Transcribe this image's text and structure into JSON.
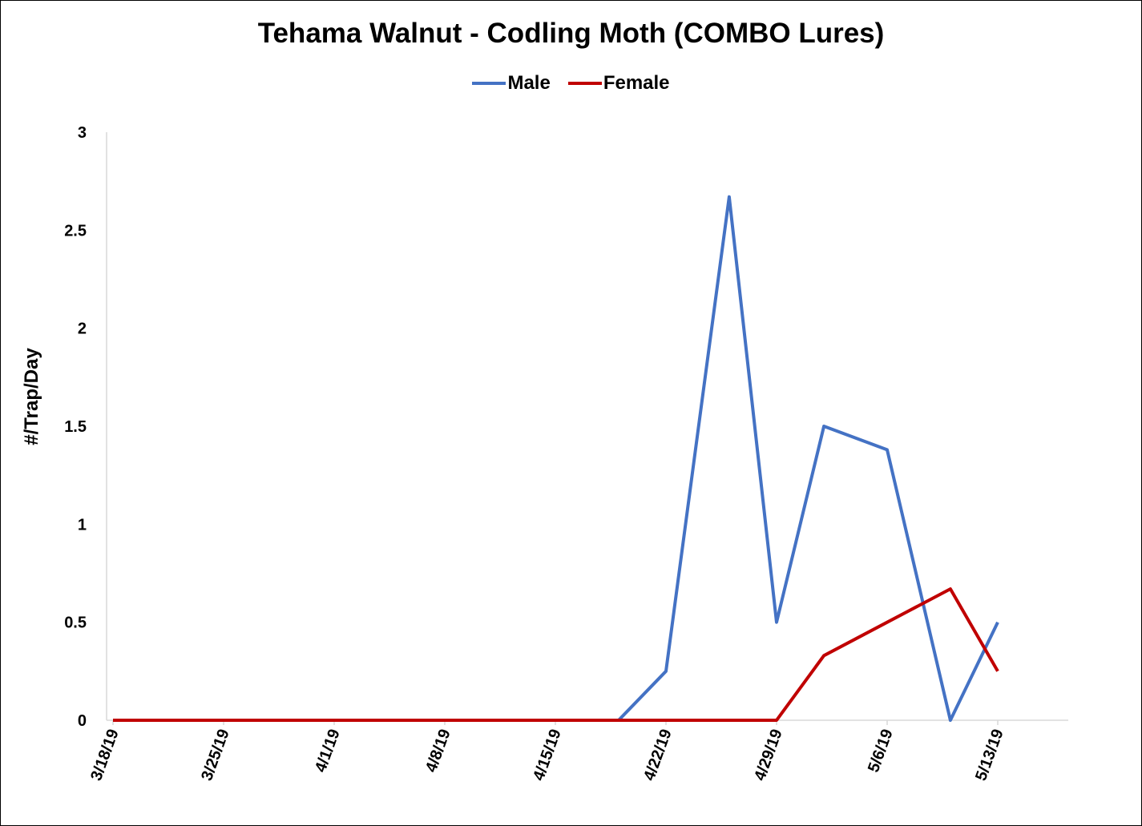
{
  "chart_data": {
    "type": "line",
    "title": "Tehama Walnut - Codling Moth (COMBO Lures)",
    "xlabel": "",
    "ylabel": "#/Trap/Day",
    "ylim": [
      0,
      3
    ],
    "yticks": [
      "0",
      "0.5",
      "1",
      "1.5",
      "2",
      "2.5",
      "3"
    ],
    "xtick_labels": [
      "3/18/19",
      "3/25/19",
      "4/1/19",
      "4/8/19",
      "4/15/19",
      "4/22/19",
      "4/29/19",
      "5/6/19",
      "5/13/19"
    ],
    "grid": false,
    "legend_position": "top",
    "x": [
      "3/18/19",
      "3/25/19",
      "4/1/19",
      "4/8/19",
      "4/15/19",
      "4/19/19",
      "4/22/19",
      "4/26/19",
      "4/29/19",
      "5/2/19",
      "5/6/19",
      "5/10/19",
      "5/13/19"
    ],
    "series": [
      {
        "name": "Male",
        "color": "#4472C4",
        "values": [
          0,
          0,
          0,
          0,
          0,
          0,
          0.25,
          2.67,
          0.5,
          1.5,
          1.38,
          0,
          0.5
        ]
      },
      {
        "name": "Female",
        "color": "#C00000",
        "values": [
          0,
          0,
          0,
          0,
          0,
          0,
          0,
          0,
          0,
          0.33,
          0.5,
          0.67,
          0.25
        ]
      }
    ]
  }
}
